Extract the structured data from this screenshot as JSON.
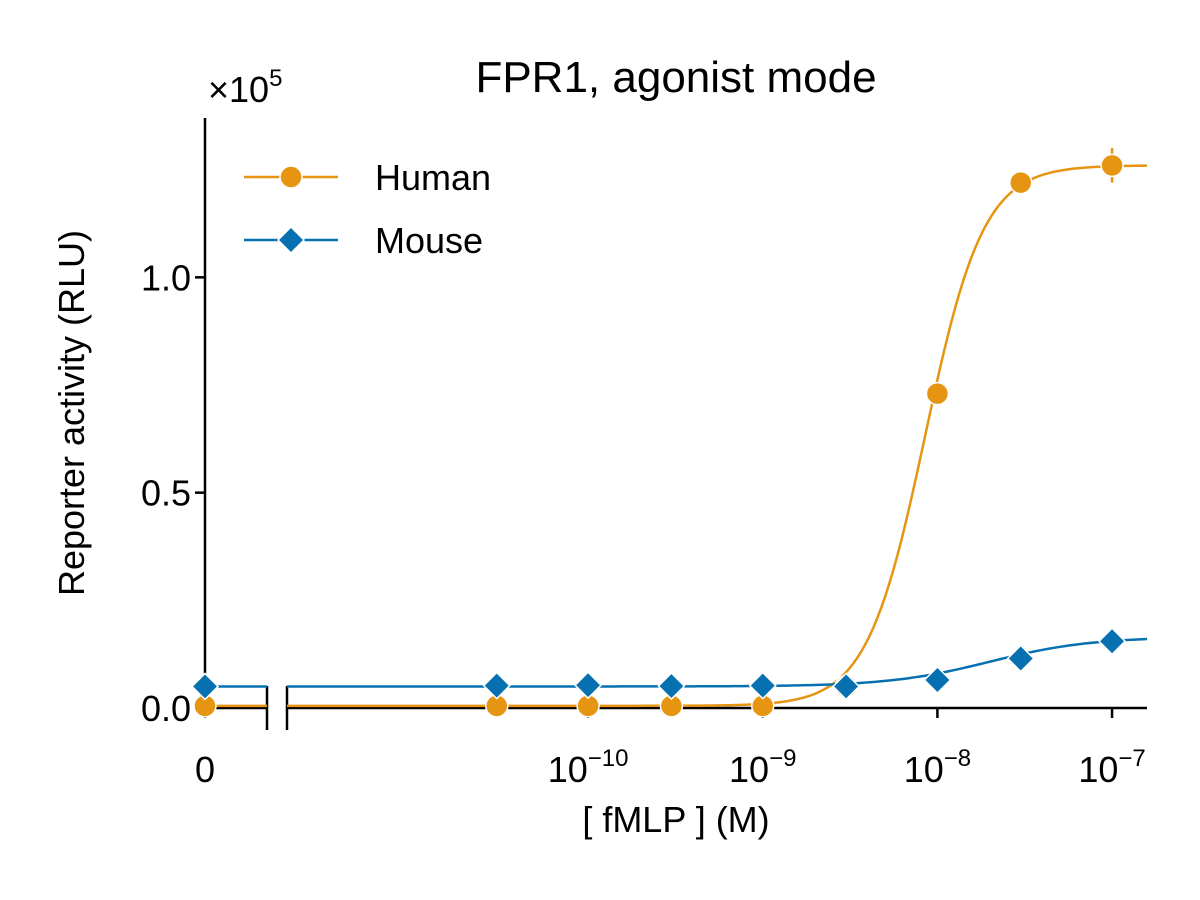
{
  "chart_data": {
    "type": "line",
    "title": "FPR1, agonist mode",
    "xlabel": "[ fMLP ] (M)",
    "ylabel": "Reporter activity (RLU)",
    "y_multiplier": {
      "prefix": "×10",
      "exponent": "5"
    },
    "x_scale": "log with broken-axis zero point",
    "x_ticks": [
      {
        "value": 0,
        "base": "0",
        "exponent": ""
      },
      {
        "value": 1e-10,
        "base": "10",
        "exponent": "−10"
      },
      {
        "value": 1e-09,
        "base": "10",
        "exponent": "−9"
      },
      {
        "value": 1e-08,
        "base": "10",
        "exponent": "−8"
      },
      {
        "value": 1e-07,
        "base": "10",
        "exponent": "−7"
      }
    ],
    "y_ticks": [
      {
        "value": 0.0,
        "label": "0.0"
      },
      {
        "value": 0.5,
        "label": "0.5"
      },
      {
        "value": 1.0,
        "label": "1.0"
      }
    ],
    "ylim": [
      0,
      1.37
    ],
    "xlim_log10": [
      -11.22,
      -6.8
    ],
    "grid": false,
    "legend_position": "top-left",
    "series": [
      {
        "name": "Human",
        "color": "#E69512",
        "marker": "circle",
        "points": [
          {
            "x": 0,
            "y": 0.005,
            "err": 0.003
          },
          {
            "x": 3e-11,
            "y": 0.005,
            "err": 0.003
          },
          {
            "x": 1e-10,
            "y": 0.005,
            "err": 0.003
          },
          {
            "x": 3e-10,
            "y": 0.005,
            "err": 0.003
          },
          {
            "x": 1e-09,
            "y": 0.005,
            "err": 0.003
          },
          {
            "x": 3e-09,
            "y": 0.05,
            "err": 0.01
          },
          {
            "x": 1e-08,
            "y": 0.73,
            "err": 0.02
          },
          {
            "x": 3e-08,
            "y": 1.22,
            "err": 0.015
          },
          {
            "x": 1e-07,
            "y": 1.26,
            "err": 0.04
          }
        ],
        "fit": {
          "bottom": 0.005,
          "top": 1.26,
          "log_ec50": -8.07,
          "hill": 2.6
        }
      },
      {
        "name": "Mouse",
        "color": "#0770B0",
        "marker": "diamond",
        "points": [
          {
            "x": 0,
            "y": 0.05,
            "err": 0.004
          },
          {
            "x": 3e-11,
            "y": 0.052,
            "err": 0.004
          },
          {
            "x": 1e-10,
            "y": 0.053,
            "err": 0.004
          },
          {
            "x": 3e-10,
            "y": 0.051,
            "err": 0.004
          },
          {
            "x": 1e-09,
            "y": 0.052,
            "err": 0.004
          },
          {
            "x": 3e-09,
            "y": 0.05,
            "err": 0.03
          },
          {
            "x": 1e-08,
            "y": 0.065,
            "err": 0.006
          },
          {
            "x": 3e-08,
            "y": 0.115,
            "err": 0.006
          },
          {
            "x": 1e-07,
            "y": 0.155,
            "err": 0.008
          }
        ],
        "fit": {
          "bottom": 0.05,
          "top": 0.165,
          "log_ec50": -7.7,
          "hill": 1.5
        }
      }
    ]
  }
}
